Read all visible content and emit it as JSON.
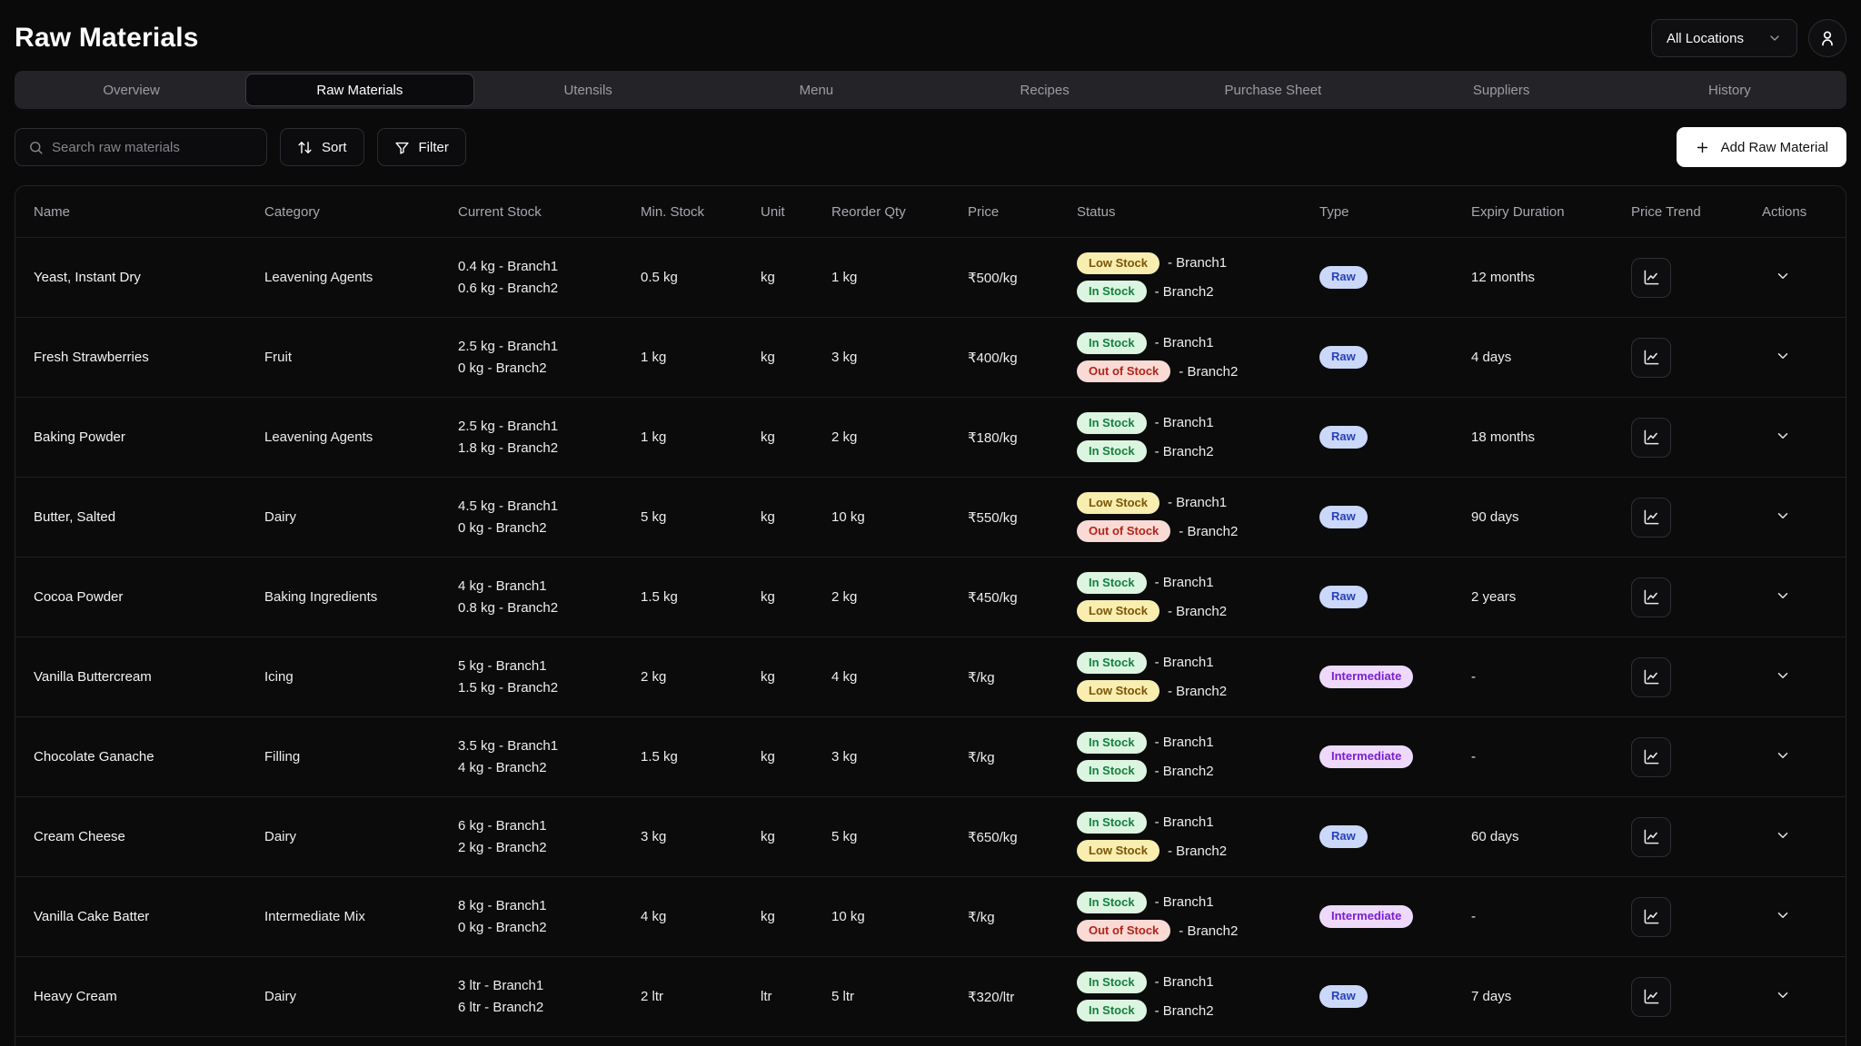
{
  "header": {
    "title": "Raw Materials",
    "location_selector": "All Locations"
  },
  "tabs": [
    {
      "label": "Overview",
      "active": false
    },
    {
      "label": "Raw Materials",
      "active": true
    },
    {
      "label": "Utensils",
      "active": false
    },
    {
      "label": "Menu",
      "active": false
    },
    {
      "label": "Recipes",
      "active": false
    },
    {
      "label": "Purchase Sheet",
      "active": false
    },
    {
      "label": "Suppliers",
      "active": false
    },
    {
      "label": "History",
      "active": false
    }
  ],
  "toolbar": {
    "search_placeholder": "Search raw materials",
    "sort_label": "Sort",
    "filter_label": "Filter",
    "add_button_label": "Add Raw Material"
  },
  "table": {
    "columns": [
      "Name",
      "Category",
      "Current Stock",
      "Min. Stock",
      "Unit",
      "Reorder Qty",
      "Price",
      "Status",
      "Type",
      "Expiry Duration",
      "Price Trend",
      "Actions"
    ],
    "rows": [
      {
        "name": "Yeast, Instant Dry",
        "category": "Leavening Agents",
        "stock": [
          "0.4 kg - Branch1",
          "0.6 kg - Branch2"
        ],
        "min_stock": "0.5 kg",
        "unit": "kg",
        "reorder_qty": "1 kg",
        "price": "₹500/kg",
        "status": [
          {
            "badge": "Low Stock",
            "branch": "- Branch1"
          },
          {
            "badge": "In Stock",
            "branch": "- Branch2"
          }
        ],
        "type": "Raw",
        "expiry": "12 months"
      },
      {
        "name": "Fresh Strawberries",
        "category": "Fruit",
        "stock": [
          "2.5 kg - Branch1",
          "0 kg - Branch2"
        ],
        "min_stock": "1 kg",
        "unit": "kg",
        "reorder_qty": "3 kg",
        "price": "₹400/kg",
        "status": [
          {
            "badge": "In Stock",
            "branch": "- Branch1"
          },
          {
            "badge": "Out of Stock",
            "branch": "- Branch2"
          }
        ],
        "type": "Raw",
        "expiry": "4 days"
      },
      {
        "name": "Baking Powder",
        "category": "Leavening Agents",
        "stock": [
          "2.5 kg - Branch1",
          "1.8 kg - Branch2"
        ],
        "min_stock": "1 kg",
        "unit": "kg",
        "reorder_qty": "2 kg",
        "price": "₹180/kg",
        "status": [
          {
            "badge": "In Stock",
            "branch": "- Branch1"
          },
          {
            "badge": "In Stock",
            "branch": "- Branch2"
          }
        ],
        "type": "Raw",
        "expiry": "18 months"
      },
      {
        "name": "Butter, Salted",
        "category": "Dairy",
        "stock": [
          "4.5 kg - Branch1",
          "0 kg - Branch2"
        ],
        "min_stock": "5 kg",
        "unit": "kg",
        "reorder_qty": "10 kg",
        "price": "₹550/kg",
        "status": [
          {
            "badge": "Low Stock",
            "branch": "- Branch1"
          },
          {
            "badge": "Out of Stock",
            "branch": "- Branch2"
          }
        ],
        "type": "Raw",
        "expiry": "90 days"
      },
      {
        "name": "Cocoa Powder",
        "category": "Baking Ingredients",
        "stock": [
          "4 kg - Branch1",
          "0.8 kg - Branch2"
        ],
        "min_stock": "1.5 kg",
        "unit": "kg",
        "reorder_qty": "2 kg",
        "price": "₹450/kg",
        "status": [
          {
            "badge": "In Stock",
            "branch": "- Branch1"
          },
          {
            "badge": "Low Stock",
            "branch": "- Branch2"
          }
        ],
        "type": "Raw",
        "expiry": "2 years"
      },
      {
        "name": "Vanilla Buttercream",
        "category": "Icing",
        "stock": [
          "5 kg - Branch1",
          "1.5 kg - Branch2"
        ],
        "min_stock": "2 kg",
        "unit": "kg",
        "reorder_qty": "4 kg",
        "price": "₹/kg",
        "status": [
          {
            "badge": "In Stock",
            "branch": "- Branch1"
          },
          {
            "badge": "Low Stock",
            "branch": "- Branch2"
          }
        ],
        "type": "Intermediate",
        "expiry": "-"
      },
      {
        "name": "Chocolate Ganache",
        "category": "Filling",
        "stock": [
          "3.5 kg - Branch1",
          "4 kg - Branch2"
        ],
        "min_stock": "1.5 kg",
        "unit": "kg",
        "reorder_qty": "3 kg",
        "price": "₹/kg",
        "status": [
          {
            "badge": "In Stock",
            "branch": "- Branch1"
          },
          {
            "badge": "In Stock",
            "branch": "- Branch2"
          }
        ],
        "type": "Intermediate",
        "expiry": "-"
      },
      {
        "name": "Cream Cheese",
        "category": "Dairy",
        "stock": [
          "6 kg - Branch1",
          "2 kg - Branch2"
        ],
        "min_stock": "3 kg",
        "unit": "kg",
        "reorder_qty": "5 kg",
        "price": "₹650/kg",
        "status": [
          {
            "badge": "In Stock",
            "branch": "- Branch1"
          },
          {
            "badge": "Low Stock",
            "branch": "- Branch2"
          }
        ],
        "type": "Raw",
        "expiry": "60 days"
      },
      {
        "name": "Vanilla Cake Batter",
        "category": "Intermediate Mix",
        "stock": [
          "8 kg - Branch1",
          "0 kg - Branch2"
        ],
        "min_stock": "4 kg",
        "unit": "kg",
        "reorder_qty": "10 kg",
        "price": "₹/kg",
        "status": [
          {
            "badge": "In Stock",
            "branch": "- Branch1"
          },
          {
            "badge": "Out of Stock",
            "branch": "- Branch2"
          }
        ],
        "type": "Intermediate",
        "expiry": "-"
      },
      {
        "name": "Heavy Cream",
        "category": "Dairy",
        "stock": [
          "3 ltr - Branch1",
          "6 ltr - Branch2"
        ],
        "min_stock": "2 ltr",
        "unit": "ltr",
        "reorder_qty": "5 ltr",
        "price": "₹320/ltr",
        "status": [
          {
            "badge": "In Stock",
            "branch": "- Branch1"
          },
          {
            "badge": "In Stock",
            "branch": "- Branch2"
          }
        ],
        "type": "Raw",
        "expiry": "7 days"
      }
    ]
  },
  "colors": {
    "background": "#0a0a0b",
    "in_stock_bg": "#dcf5e1",
    "in_stock_text": "#15803d",
    "low_stock_bg": "#f7eeb0",
    "low_stock_text": "#7c5506",
    "out_of_stock_bg": "#f9dad5",
    "out_of_stock_text": "#b42318",
    "type_raw_bg": "#ccd8f9",
    "type_raw_text": "#2742b8",
    "type_intermediate_bg": "#eed9fb",
    "type_intermediate_text": "#7b1fd1",
    "add_button_bg": "#ffffff"
  }
}
